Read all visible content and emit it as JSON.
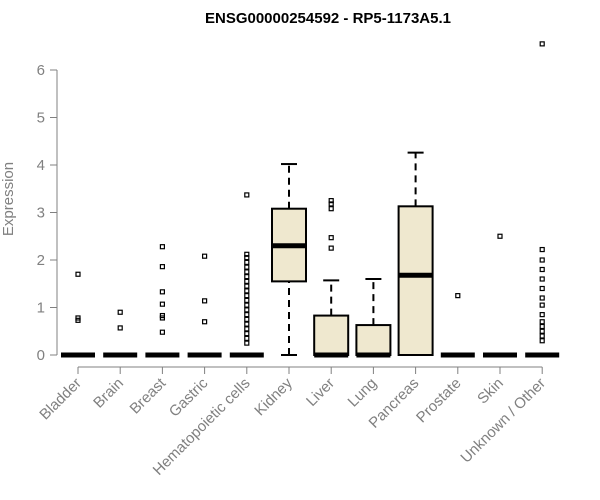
{
  "chart_data": {
    "type": "box",
    "title": "ENSG00000254592 - RP5-1173A5.1",
    "xlabel": "",
    "ylabel": "Expression",
    "ylim": [
      0,
      6.6
    ],
    "yticks": [
      0,
      1,
      2,
      3,
      4,
      5,
      6
    ],
    "box_fill": "#efe8cf",
    "categories": [
      "Bladder",
      "Brain",
      "Breast",
      "Gastric",
      "Hematopoietic cells",
      "Kidney",
      "Liver",
      "Lung",
      "Pancreas",
      "Prostate",
      "Skin",
      "Unknown / Other"
    ],
    "boxes": [
      {
        "category": "Bladder",
        "min": 0,
        "q1": 0,
        "median": 0,
        "q3": 0,
        "max": 0,
        "outliers": [
          0.73,
          0.78,
          1.7
        ]
      },
      {
        "category": "Brain",
        "min": 0,
        "q1": 0,
        "median": 0,
        "q3": 0,
        "max": 0,
        "outliers": [
          0.57,
          0.9
        ]
      },
      {
        "category": "Breast",
        "min": 0,
        "q1": 0,
        "median": 0,
        "q3": 0,
        "max": 0,
        "outliers": [
          0.48,
          0.78,
          0.83,
          1.07,
          1.33,
          1.86,
          2.28
        ]
      },
      {
        "category": "Gastric",
        "min": 0,
        "q1": 0,
        "median": 0,
        "q3": 0,
        "max": 0,
        "outliers": [
          0.7,
          1.14,
          2.08
        ]
      },
      {
        "category": "Hematopoietic cells",
        "min": 0,
        "q1": 0,
        "median": 0,
        "q3": 0,
        "max": 0,
        "outliers": [
          0.25,
          0.35,
          0.45,
          0.55,
          0.65,
          0.75,
          0.85,
          0.95,
          1.05,
          1.15,
          1.25,
          1.35,
          1.45,
          1.55,
          1.65,
          1.75,
          1.85,
          1.95,
          2.05,
          2.12,
          3.37
        ]
      },
      {
        "category": "Kidney",
        "min": 0,
        "q1": 1.55,
        "median": 2.3,
        "q3": 3.08,
        "max": 4.02,
        "outliers": []
      },
      {
        "category": "Liver",
        "min": 0,
        "q1": 0,
        "median": 0,
        "q3": 0.83,
        "max": 1.57,
        "outliers": [
          2.25,
          2.47,
          3.08,
          3.18,
          3.25
        ]
      },
      {
        "category": "Lung",
        "min": 0,
        "q1": 0,
        "median": 0,
        "q3": 0.63,
        "max": 1.6,
        "outliers": []
      },
      {
        "category": "Pancreas",
        "min": 0,
        "q1": 0,
        "median": 1.68,
        "q3": 3.13,
        "max": 4.26,
        "outliers": []
      },
      {
        "category": "Prostate",
        "min": 0,
        "q1": 0,
        "median": 0,
        "q3": 0,
        "max": 0,
        "outliers": [
          1.25
        ]
      },
      {
        "category": "Skin",
        "min": 0,
        "q1": 0,
        "median": 0,
        "q3": 0,
        "max": 0,
        "outliers": [
          2.5
        ]
      },
      {
        "category": "Unknown / Other",
        "min": 0,
        "q1": 0,
        "median": 0,
        "q3": 0,
        "max": 0,
        "outliers": [
          0.3,
          0.4,
          0.5,
          0.6,
          0.7,
          0.85,
          1.05,
          1.2,
          1.4,
          1.6,
          1.8,
          2.0,
          2.22,
          6.55
        ]
      }
    ]
  }
}
